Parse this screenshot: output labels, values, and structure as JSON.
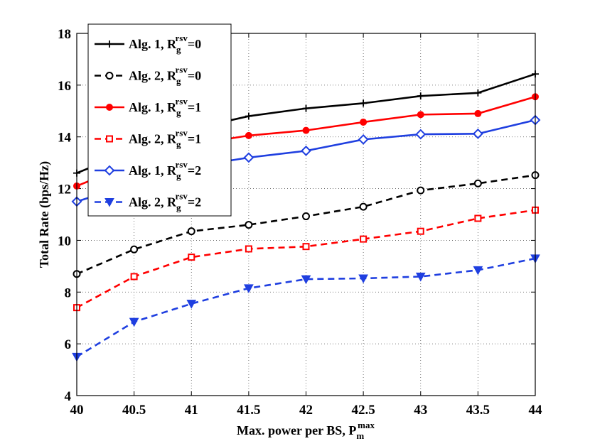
{
  "chart_data": {
    "type": "line",
    "xlabel": "Max. power per BS, P",
    "xlabel_sub": "m",
    "xlabel_sup": "max",
    "ylabel": "Total Rate (bps/Hz)",
    "x": [
      40,
      40.5,
      41,
      41.5,
      42,
      42.5,
      43,
      43.5,
      44
    ],
    "xlim": [
      40,
      44
    ],
    "ylim": [
      4,
      18
    ],
    "xticks": [
      "40",
      "40.5",
      "41",
      "41.5",
      "42",
      "42.5",
      "43",
      "43.5",
      "44"
    ],
    "yticks": [
      "4",
      "6",
      "8",
      "10",
      "12",
      "14",
      "16",
      "18"
    ],
    "grid": true,
    "legend_position": "top-left",
    "series": [
      {
        "name": "Alg. 1, R",
        "sub": "g",
        "sup": "rsv",
        "eq": "=0",
        "color": "#000000",
        "dash": "solid",
        "marker": "plus",
        "values": [
          12.6,
          13.5,
          14.3,
          14.8,
          15.1,
          15.3,
          15.58,
          15.7,
          16.43
        ]
      },
      {
        "name": "Alg. 2, R",
        "sub": "g",
        "sup": "rsv",
        "eq": "=0",
        "color": "#000000",
        "dash": "dashed",
        "marker": "circle",
        "values": [
          8.7,
          9.65,
          10.35,
          10.6,
          10.93,
          11.3,
          11.93,
          12.2,
          12.52
        ]
      },
      {
        "name": "Alg. 1, R",
        "sub": "g",
        "sup": "rsv",
        "eq": "=1",
        "color": "#ff0000",
        "dash": "solid",
        "marker": "dot",
        "values": [
          12.1,
          13.0,
          13.7,
          14.05,
          14.25,
          14.57,
          14.86,
          14.9,
          15.55
        ]
      },
      {
        "name": "Alg. 2, R",
        "sub": "g",
        "sup": "rsv",
        "eq": "=1",
        "color": "#ff0000",
        "dash": "dashed",
        "marker": "square",
        "values": [
          7.4,
          8.6,
          9.35,
          9.67,
          9.76,
          10.05,
          10.35,
          10.85,
          11.17
        ]
      },
      {
        "name": "Alg. 1, R",
        "sub": "g",
        "sup": "rsv",
        "eq": "=2",
        "color": "#1f3fe0",
        "dash": "solid",
        "marker": "diamond",
        "values": [
          11.5,
          12.2,
          12.85,
          13.2,
          13.46,
          13.9,
          14.1,
          14.12,
          14.65
        ]
      },
      {
        "name": "Alg. 2, R",
        "sub": "g",
        "sup": "rsv",
        "eq": "=2",
        "color": "#1f3fe0",
        "dash": "dashed",
        "marker": "triangle-down",
        "values": [
          5.5,
          6.85,
          7.55,
          8.15,
          8.5,
          8.53,
          8.6,
          8.85,
          9.3
        ]
      }
    ]
  }
}
